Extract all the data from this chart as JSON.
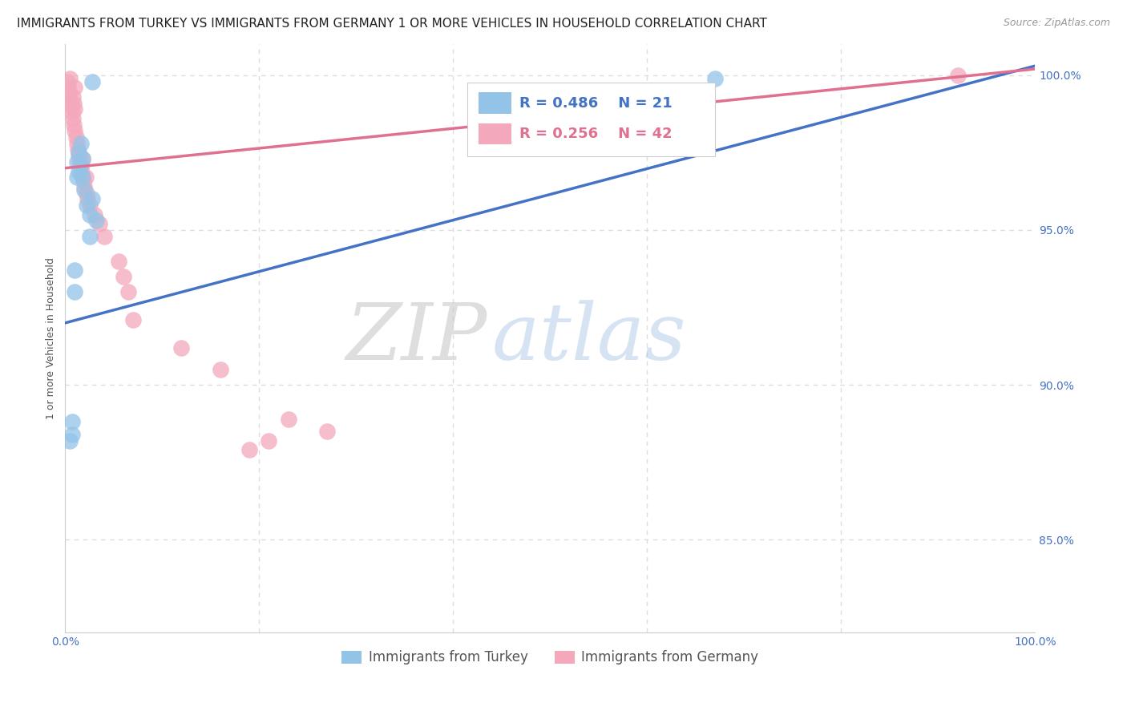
{
  "title": "IMMIGRANTS FROM TURKEY VS IMMIGRANTS FROM GERMANY 1 OR MORE VEHICLES IN HOUSEHOLD CORRELATION CHART",
  "source": "Source: ZipAtlas.com",
  "ylabel": "1 or more Vehicles in Household",
  "xlim": [
    0.0,
    1.0
  ],
  "ylim": [
    0.82,
    1.01
  ],
  "ytick_positions": [
    0.85,
    0.9,
    0.95,
    1.0
  ],
  "ytick_labels": [
    "85.0%",
    "90.0%",
    "95.0%",
    "100.0%"
  ],
  "turkey_color": "#93c4e8",
  "germany_color": "#f4a8bb",
  "turkey_line_color": "#4472c4",
  "germany_line_color": "#e07090",
  "turkey_R": 0.486,
  "turkey_N": 21,
  "germany_R": 0.256,
  "germany_N": 42,
  "legend_label_turkey": "Immigrants from Turkey",
  "legend_label_germany": "Immigrants from Germany",
  "turkey_line_x0": 0.0,
  "turkey_line_y0": 0.92,
  "turkey_line_x1": 1.0,
  "turkey_line_y1": 1.003,
  "germany_line_x0": 0.0,
  "germany_line_y0": 0.97,
  "germany_line_x1": 1.0,
  "germany_line_y1": 1.002,
  "turkey_x": [
    0.005,
    0.007,
    0.007,
    0.01,
    0.01,
    0.012,
    0.012,
    0.014,
    0.014,
    0.016,
    0.016,
    0.018,
    0.018,
    0.02,
    0.022,
    0.025,
    0.025,
    0.028,
    0.028,
    0.032,
    0.67
  ],
  "turkey_y": [
    0.882,
    0.888,
    0.884,
    0.937,
    0.93,
    0.972,
    0.967,
    0.975,
    0.969,
    0.978,
    0.971,
    0.973,
    0.967,
    0.963,
    0.958,
    0.955,
    0.948,
    0.998,
    0.96,
    0.953,
    0.999
  ],
  "germany_x": [
    0.002,
    0.003,
    0.004,
    0.005,
    0.005,
    0.006,
    0.007,
    0.008,
    0.008,
    0.009,
    0.009,
    0.01,
    0.01,
    0.01,
    0.011,
    0.012,
    0.013,
    0.014,
    0.015,
    0.016,
    0.017,
    0.018,
    0.019,
    0.02,
    0.021,
    0.022,
    0.023,
    0.025,
    0.03,
    0.035,
    0.04,
    0.055,
    0.06,
    0.065,
    0.07,
    0.12,
    0.16,
    0.19,
    0.21,
    0.23,
    0.27,
    0.92
  ],
  "germany_y": [
    0.998,
    0.996,
    0.994,
    0.992,
    0.999,
    0.99,
    0.988,
    0.986,
    0.993,
    0.984,
    0.991,
    0.982,
    0.989,
    0.996,
    0.98,
    0.978,
    0.976,
    0.974,
    0.972,
    0.97,
    0.968,
    0.973,
    0.966,
    0.964,
    0.967,
    0.962,
    0.96,
    0.958,
    0.955,
    0.952,
    0.948,
    0.94,
    0.935,
    0.93,
    0.921,
    0.912,
    0.905,
    0.879,
    0.882,
    0.889,
    0.885,
    1.0
  ],
  "watermark_zip": "ZIP",
  "watermark_atlas": "atlas",
  "background_color": "#ffffff",
  "grid_color": "#dddddd",
  "title_fontsize": 11,
  "axis_label_fontsize": 9,
  "tick_fontsize": 10,
  "tick_color": "#4472c4"
}
